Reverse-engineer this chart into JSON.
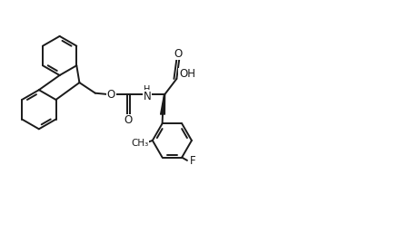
{
  "background_color": "#ffffff",
  "line_color": "#1a1a1a",
  "line_width": 1.4,
  "font_size": 8.5,
  "figsize": [
    4.38,
    2.68
  ],
  "dpi": 100,
  "xlim": [
    0,
    10.5
  ],
  "ylim": [
    0,
    6.2
  ]
}
